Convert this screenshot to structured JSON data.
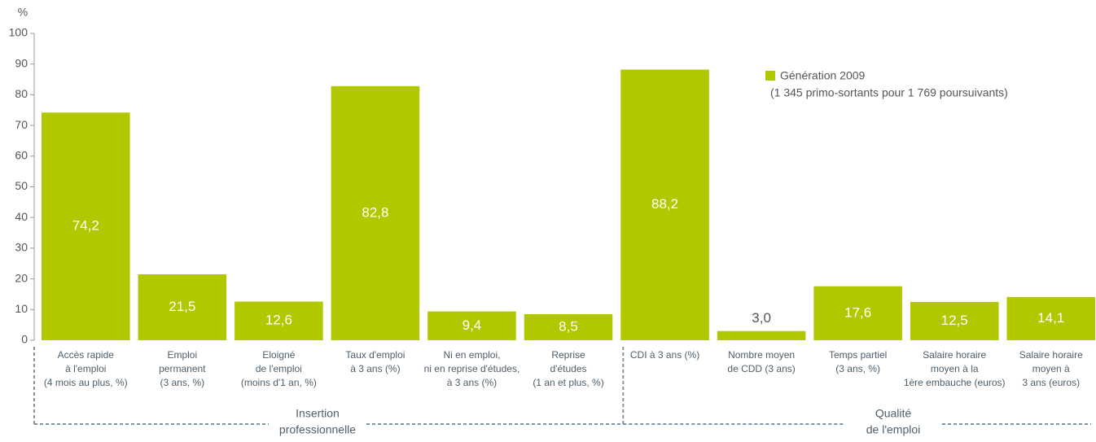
{
  "chart_data": {
    "type": "bar",
    "y_label": "%",
    "categories": [
      [
        "Accès rapide",
        "à l'emploi",
        "(4 mois au plus, %)"
      ],
      [
        "Emploi",
        "permanent",
        "(3 ans, %)"
      ],
      [
        "Eloigné",
        "de l'emploi",
        "(moins d'1 an, %)"
      ],
      [
        "Taux d'emploi",
        "à 3 ans (%)"
      ],
      [
        "Ni en emploi,",
        "ni en reprise d'études,",
        "à 3 ans (%)"
      ],
      [
        "Reprise",
        "d'études",
        "(1 an et plus, %)"
      ],
      [
        "CDI à 3 ans (%)"
      ],
      [
        "Nombre moyen",
        "de CDD (3 ans)"
      ],
      [
        "Temps partiel",
        "(3 ans, %)"
      ],
      [
        "Salaire horaire",
        "moyen à la",
        "1ère embauche (euros)"
      ],
      [
        "Salaire horaire",
        "moyen à",
        "3 ans (euros)"
      ]
    ],
    "groups": [
      {
        "label": [
          "Insertion",
          "professionnelle"
        ],
        "start": 0,
        "end": 5
      },
      {
        "label": [
          "Qualité",
          "de l'emploi"
        ],
        "start": 6,
        "end": 10
      }
    ],
    "series": [
      {
        "name": "Génération 2009",
        "color": "#b1c800",
        "values": [
          74.2,
          21.5,
          12.6,
          82.8,
          9.4,
          8.5,
          88.2,
          3.0,
          17.6,
          12.5,
          14.1
        ],
        "value_labels": [
          "74,2",
          "21,5",
          "12,6",
          "82,8",
          "9,4",
          "8,5",
          "88,2",
          "3,0",
          "17,6",
          "12,5",
          "14,1"
        ]
      }
    ],
    "legend_note": "(1 345 primo-sortants pour 1 769 poursuivants)",
    "ylim": [
      0,
      100
    ],
    "yticks": [
      0,
      10,
      20,
      30,
      40,
      50,
      60,
      70,
      80,
      90,
      100
    ],
    "grid": false
  }
}
